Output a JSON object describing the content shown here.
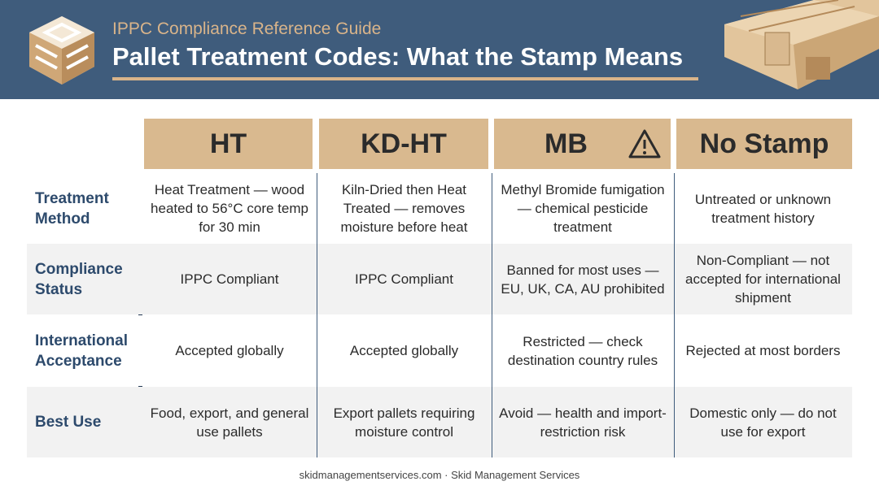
{
  "header": {
    "subtitle": "IPPC Compliance Reference Guide",
    "title": "Pallet Treatment Codes: What the Stamp Means"
  },
  "table": {
    "columns": [
      "HT",
      "KD-HT",
      "MB",
      "No Stamp"
    ],
    "rows": [
      {
        "label": "Treatment Method",
        "cells": [
          "Heat Treatment — wood heated to 56°C core temp for 30 min",
          "Kiln-Dried then Heat Treated — removes moisture before heat",
          "Methyl Bromide fumigation — chemical pesticide treatment",
          "Untreated or unknown treatment history"
        ]
      },
      {
        "label": "Compliance Status",
        "cells": [
          "IPPC Compliant",
          "IPPC Compliant",
          "Banned for most uses — EU, UK, CA, AU prohibited",
          "Non-Compliant — not accepted for international shipment"
        ]
      },
      {
        "label": "International Acceptance",
        "cells": [
          "Accepted globally",
          "Accepted globally",
          "Restricted — check destination country rules",
          "Rejected at most borders"
        ]
      },
      {
        "label": "Best Use",
        "cells": [
          "Food, export, and general use pallets",
          "Export pallets requiring moisture control",
          "Avoid — health and import-restriction risk",
          "Domestic only — do not use for export"
        ]
      }
    ]
  },
  "footer": "skidmanagementservices.com · Skid Management Services"
}
